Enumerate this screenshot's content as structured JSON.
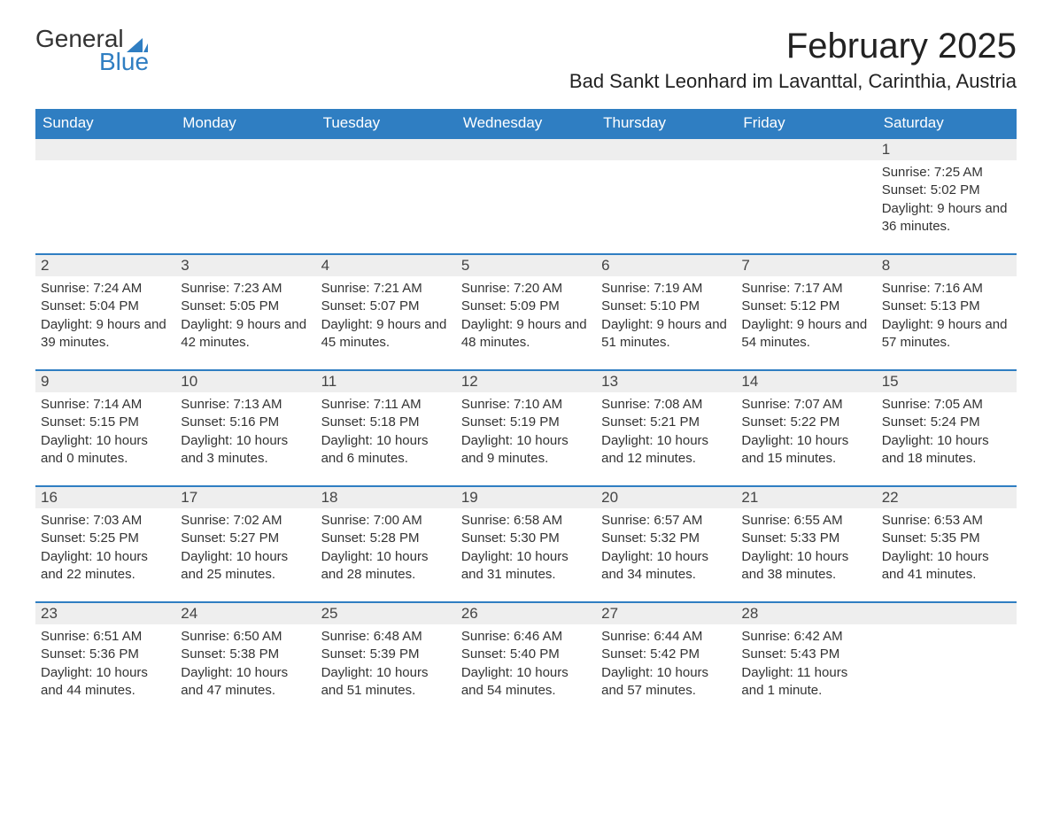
{
  "logo": {
    "text_a": "General",
    "text_b": "Blue",
    "shape_color": "#2f7ec2"
  },
  "title": "February 2025",
  "location": "Bad Sankt Leonhard im Lavanttal, Carinthia, Austria",
  "colors": {
    "header_bg": "#2f7ec2",
    "header_text": "#ffffff",
    "daybar_bg": "#eeeeee",
    "daybar_border": "#2f7ec2",
    "body_text": "#333333"
  },
  "weekdays": [
    "Sunday",
    "Monday",
    "Tuesday",
    "Wednesday",
    "Thursday",
    "Friday",
    "Saturday"
  ],
  "weeks": [
    [
      {
        "blank": true
      },
      {
        "blank": true
      },
      {
        "blank": true
      },
      {
        "blank": true
      },
      {
        "blank": true
      },
      {
        "blank": true
      },
      {
        "date": 1,
        "sunrise": "7:25 AM",
        "sunset": "5:02 PM",
        "daylight": "9 hours and 36 minutes."
      }
    ],
    [
      {
        "date": 2,
        "sunrise": "7:24 AM",
        "sunset": "5:04 PM",
        "daylight": "9 hours and 39 minutes."
      },
      {
        "date": 3,
        "sunrise": "7:23 AM",
        "sunset": "5:05 PM",
        "daylight": "9 hours and 42 minutes."
      },
      {
        "date": 4,
        "sunrise": "7:21 AM",
        "sunset": "5:07 PM",
        "daylight": "9 hours and 45 minutes."
      },
      {
        "date": 5,
        "sunrise": "7:20 AM",
        "sunset": "5:09 PM",
        "daylight": "9 hours and 48 minutes."
      },
      {
        "date": 6,
        "sunrise": "7:19 AM",
        "sunset": "5:10 PM",
        "daylight": "9 hours and 51 minutes."
      },
      {
        "date": 7,
        "sunrise": "7:17 AM",
        "sunset": "5:12 PM",
        "daylight": "9 hours and 54 minutes."
      },
      {
        "date": 8,
        "sunrise": "7:16 AM",
        "sunset": "5:13 PM",
        "daylight": "9 hours and 57 minutes."
      }
    ],
    [
      {
        "date": 9,
        "sunrise": "7:14 AM",
        "sunset": "5:15 PM",
        "daylight": "10 hours and 0 minutes."
      },
      {
        "date": 10,
        "sunrise": "7:13 AM",
        "sunset": "5:16 PM",
        "daylight": "10 hours and 3 minutes."
      },
      {
        "date": 11,
        "sunrise": "7:11 AM",
        "sunset": "5:18 PM",
        "daylight": "10 hours and 6 minutes."
      },
      {
        "date": 12,
        "sunrise": "7:10 AM",
        "sunset": "5:19 PM",
        "daylight": "10 hours and 9 minutes."
      },
      {
        "date": 13,
        "sunrise": "7:08 AM",
        "sunset": "5:21 PM",
        "daylight": "10 hours and 12 minutes."
      },
      {
        "date": 14,
        "sunrise": "7:07 AM",
        "sunset": "5:22 PM",
        "daylight": "10 hours and 15 minutes."
      },
      {
        "date": 15,
        "sunrise": "7:05 AM",
        "sunset": "5:24 PM",
        "daylight": "10 hours and 18 minutes."
      }
    ],
    [
      {
        "date": 16,
        "sunrise": "7:03 AM",
        "sunset": "5:25 PM",
        "daylight": "10 hours and 22 minutes."
      },
      {
        "date": 17,
        "sunrise": "7:02 AM",
        "sunset": "5:27 PM",
        "daylight": "10 hours and 25 minutes."
      },
      {
        "date": 18,
        "sunrise": "7:00 AM",
        "sunset": "5:28 PM",
        "daylight": "10 hours and 28 minutes."
      },
      {
        "date": 19,
        "sunrise": "6:58 AM",
        "sunset": "5:30 PM",
        "daylight": "10 hours and 31 minutes."
      },
      {
        "date": 20,
        "sunrise": "6:57 AM",
        "sunset": "5:32 PM",
        "daylight": "10 hours and 34 minutes."
      },
      {
        "date": 21,
        "sunrise": "6:55 AM",
        "sunset": "5:33 PM",
        "daylight": "10 hours and 38 minutes."
      },
      {
        "date": 22,
        "sunrise": "6:53 AM",
        "sunset": "5:35 PM",
        "daylight": "10 hours and 41 minutes."
      }
    ],
    [
      {
        "date": 23,
        "sunrise": "6:51 AM",
        "sunset": "5:36 PM",
        "daylight": "10 hours and 44 minutes."
      },
      {
        "date": 24,
        "sunrise": "6:50 AM",
        "sunset": "5:38 PM",
        "daylight": "10 hours and 47 minutes."
      },
      {
        "date": 25,
        "sunrise": "6:48 AM",
        "sunset": "5:39 PM",
        "daylight": "10 hours and 51 minutes."
      },
      {
        "date": 26,
        "sunrise": "6:46 AM",
        "sunset": "5:40 PM",
        "daylight": "10 hours and 54 minutes."
      },
      {
        "date": 27,
        "sunrise": "6:44 AM",
        "sunset": "5:42 PM",
        "daylight": "10 hours and 57 minutes."
      },
      {
        "date": 28,
        "sunrise": "6:42 AM",
        "sunset": "5:43 PM",
        "daylight": "11 hours and 1 minute."
      },
      {
        "blank": true
      }
    ]
  ],
  "labels": {
    "sunrise": "Sunrise:",
    "sunset": "Sunset:",
    "daylight": "Daylight:"
  }
}
